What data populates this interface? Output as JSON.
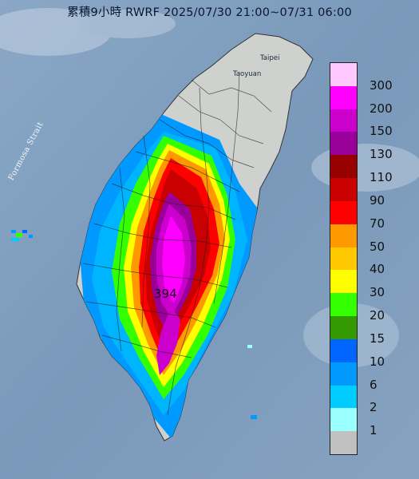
{
  "title": "累積9小時 RWRF 2025/07/30 21:00~07/31 06:00",
  "strait_label": "Formosa Strait",
  "places": {
    "taipei": "Taipei",
    "taoyuan": "Taoyuan"
  },
  "max_value": "394",
  "legend": {
    "levels": [
      {
        "label": "300",
        "color": "#ffc8ff"
      },
      {
        "label": "200",
        "color": "#ff00ff"
      },
      {
        "label": "150",
        "color": "#cc00cc"
      },
      {
        "label": "130",
        "color": "#990099"
      },
      {
        "label": "110",
        "color": "#960000"
      },
      {
        "label": "90",
        "color": "#c80000"
      },
      {
        "label": "70",
        "color": "#ff0000"
      },
      {
        "label": "50",
        "color": "#ff9900"
      },
      {
        "label": "40",
        "color": "#ffc800"
      },
      {
        "label": "30",
        "color": "#ffff00"
      },
      {
        "label": "20",
        "color": "#33ff00"
      },
      {
        "label": "15",
        "color": "#339900"
      },
      {
        "label": "10",
        "color": "#0066ff"
      },
      {
        "label": "6",
        "color": "#0099ff"
      },
      {
        "label": "2",
        "color": "#00ccff"
      },
      {
        "label": "1",
        "color": "#99ffff"
      },
      {
        "label": "",
        "color": "#c0c0c0"
      }
    ]
  }
}
